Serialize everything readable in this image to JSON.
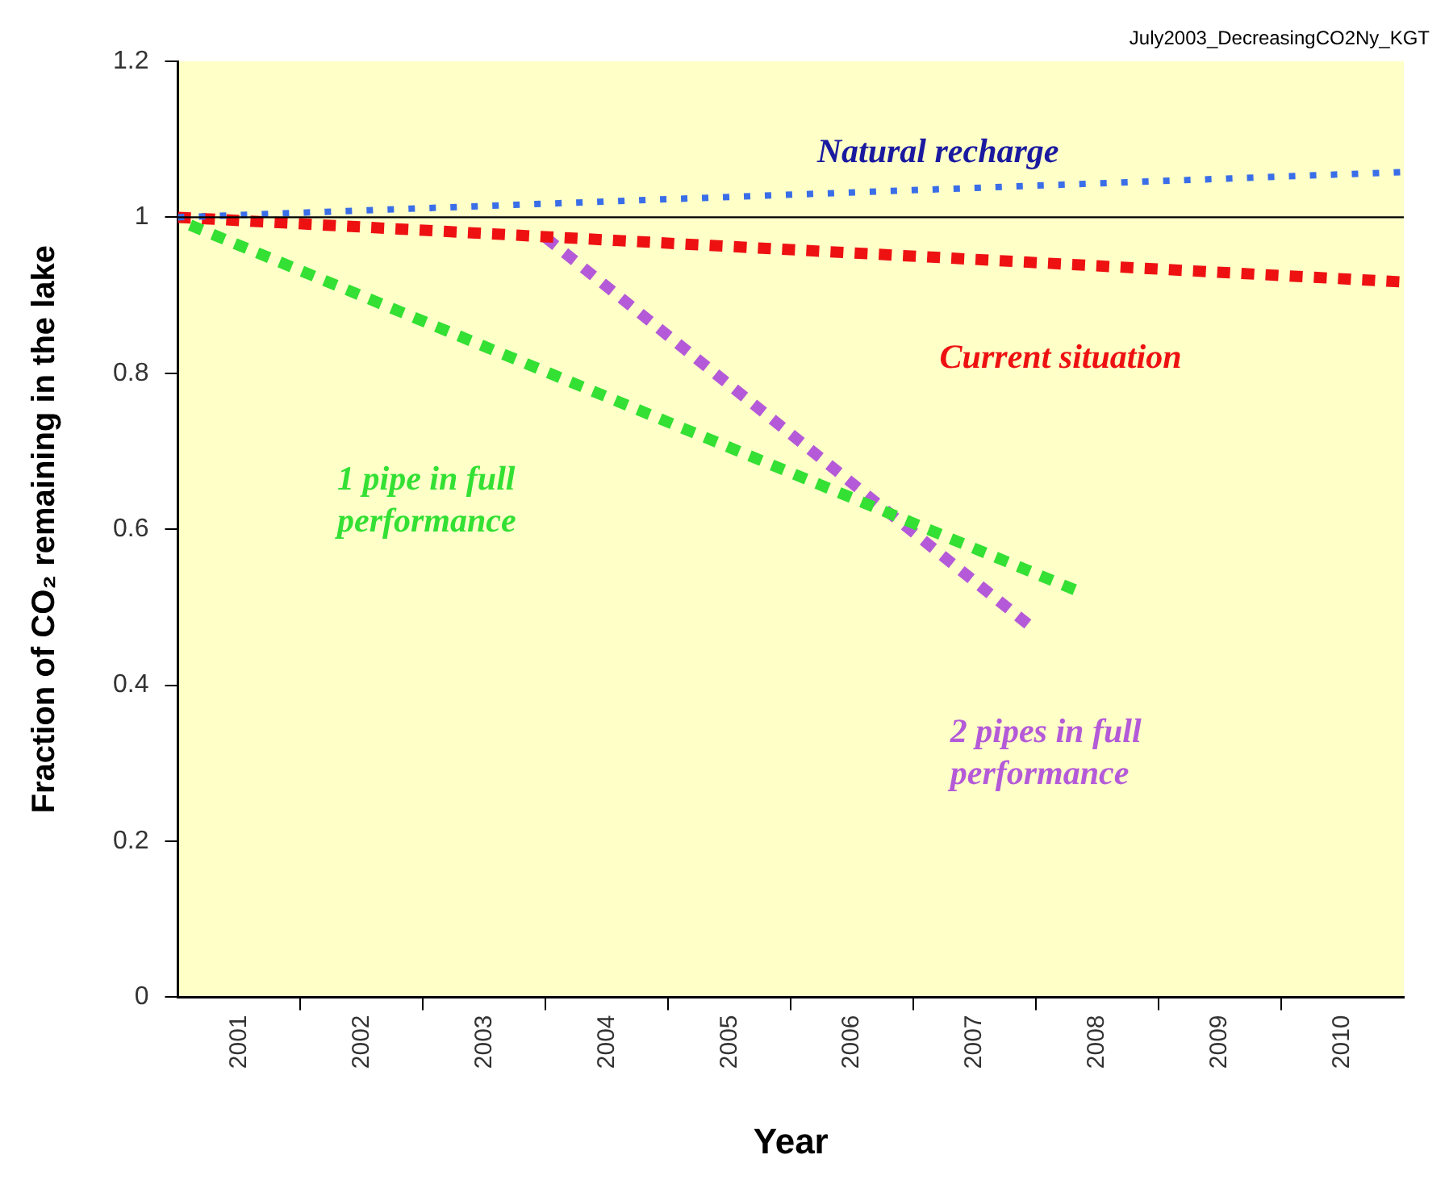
{
  "chart_data": {
    "type": "line",
    "xlabel": "Year",
    "ylabel": "Fraction of CO₂ remaining in the lake",
    "annotations": [
      "July2003_DecreasingCO2Ny_KGT"
    ],
    "xlim": [
      2001,
      2011
    ],
    "xticks": [
      {
        "value": 2001.5,
        "label": "2001"
      },
      {
        "value": 2002,
        "label": null
      },
      {
        "value": 2002.5,
        "label": "2002"
      },
      {
        "value": 2003,
        "label": null
      },
      {
        "value": 2003.5,
        "label": "2003"
      },
      {
        "value": 2004,
        "label": null
      },
      {
        "value": 2004.5,
        "label": "2004"
      },
      {
        "value": 2005,
        "label": null
      },
      {
        "value": 2005.5,
        "label": "2005"
      },
      {
        "value": 2006,
        "label": null
      },
      {
        "value": 2006.5,
        "label": "2006"
      },
      {
        "value": 2007,
        "label": null
      },
      {
        "value": 2007.5,
        "label": "2007"
      },
      {
        "value": 2008,
        "label": null
      },
      {
        "value": 2008.5,
        "label": "2008"
      },
      {
        "value": 2009,
        "label": null
      },
      {
        "value": 2009.5,
        "label": "2009"
      },
      {
        "value": 2010,
        "label": null
      },
      {
        "value": 2010.5,
        "label": "2010"
      }
    ],
    "ylim": [
      0,
      1.2
    ],
    "yticks": [
      0,
      0.2,
      0.4,
      0.6,
      0.8,
      1,
      {
        "value": 1.2,
        "label": "1.2"
      }
    ],
    "grid": false,
    "legend": false,
    "marker": "none",
    "ref_lines": [
      {
        "axis": "y",
        "value": 1,
        "color": "#000000",
        "line_style": "solid"
      }
    ],
    "series": [
      {
        "name": "Natural recharge",
        "color": "#3a6ee8",
        "line_style": "dotted",
        "x": [
          2001,
          2011
        ],
        "values": [
          1.0,
          1.058
        ]
      },
      {
        "name": "Current situation",
        "color": "#ee1111",
        "line_style": "dashed",
        "x": [
          2001,
          2011
        ],
        "values": [
          1.0,
          0.917
        ]
      },
      {
        "name": "1 pipe in full performance",
        "color": "#33e033",
        "line_style": "dashed",
        "x": [
          2001.1,
          2008.4
        ],
        "values": [
          0.99,
          0.517
        ]
      },
      {
        "name": "2 pipes in full performance",
        "color": "#b45ad8",
        "line_style": "dashed",
        "x": [
          2004.0,
          2008.0
        ],
        "values": [
          0.974,
          0.47
        ]
      }
    ]
  }
}
